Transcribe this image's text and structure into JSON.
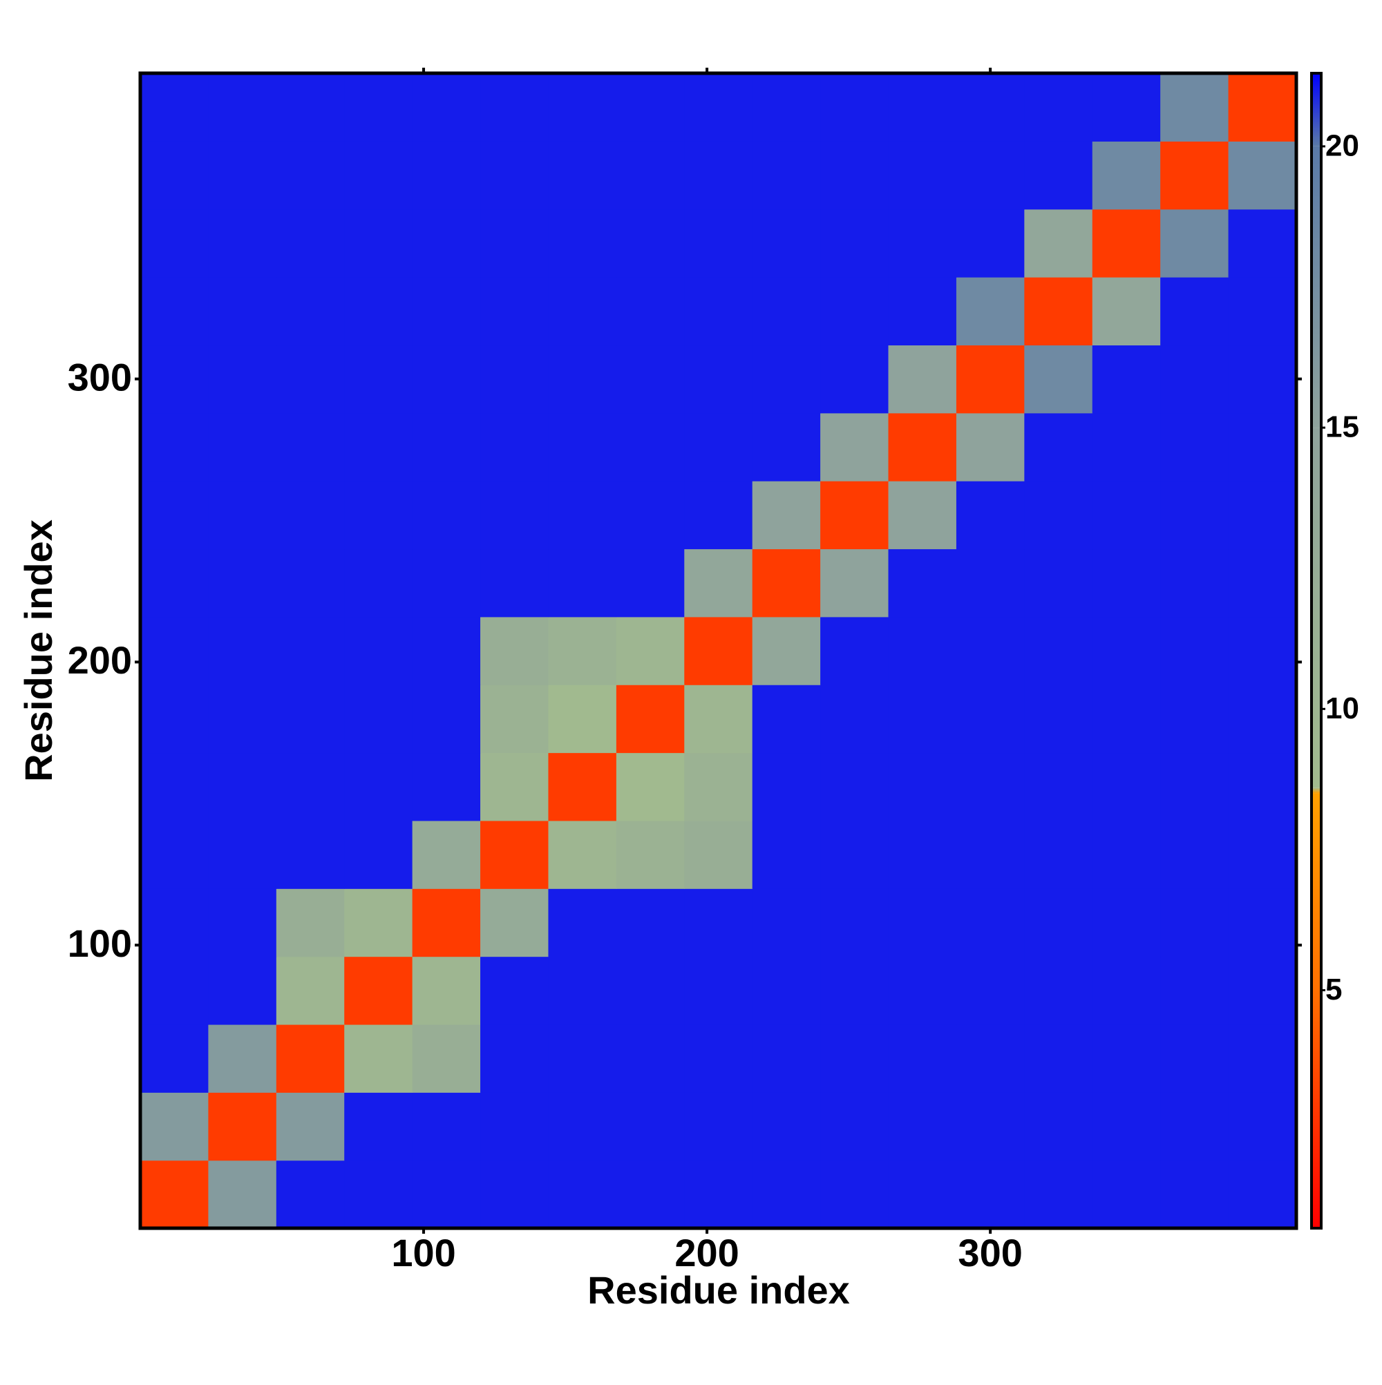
{
  "chart_data": {
    "type": "heatmap",
    "xlabel": "Residue index",
    "ylabel": "Residue index",
    "xlim": [
      0,
      408
    ],
    "ylim": [
      0,
      408
    ],
    "xticks": [
      100,
      200,
      300
    ],
    "yticks": [
      100,
      200,
      300
    ],
    "xbins": [
      0,
      24,
      48,
      72,
      96,
      120,
      144,
      168,
      192,
      216,
      240,
      264,
      288,
      312,
      336,
      360,
      384,
      408
    ],
    "ybins": [
      0,
      24,
      48,
      72,
      96,
      120,
      144,
      168,
      192,
      216,
      240,
      264,
      288,
      312,
      336,
      360,
      384,
      408
    ],
    "z": [
      [
        3,
        16,
        21,
        21,
        21,
        21,
        21,
        21,
        21,
        21,
        21,
        21,
        21,
        21,
        21,
        21,
        21
      ],
      [
        16,
        3,
        16,
        21,
        21,
        21,
        21,
        21,
        21,
        21,
        21,
        21,
        21,
        21,
        21,
        21,
        21
      ],
      [
        21,
        16,
        3,
        10,
        12,
        21,
        21,
        21,
        21,
        21,
        21,
        21,
        21,
        21,
        21,
        21,
        21
      ],
      [
        21,
        21,
        10,
        3,
        10,
        21,
        21,
        21,
        21,
        21,
        21,
        21,
        21,
        21,
        21,
        21,
        21
      ],
      [
        21,
        21,
        12,
        10,
        3,
        13,
        21,
        21,
        21,
        21,
        21,
        21,
        21,
        21,
        21,
        21,
        21
      ],
      [
        21,
        21,
        21,
        21,
        13,
        3,
        10,
        11,
        12,
        21,
        21,
        21,
        21,
        21,
        21,
        21,
        21
      ],
      [
        21,
        21,
        21,
        21,
        21,
        10,
        3,
        9,
        11,
        21,
        21,
        21,
        21,
        21,
        21,
        21,
        21
      ],
      [
        21,
        21,
        21,
        21,
        21,
        11,
        9,
        3,
        10,
        21,
        21,
        21,
        21,
        21,
        21,
        21,
        21
      ],
      [
        21,
        21,
        21,
        21,
        21,
        12,
        11,
        10,
        3,
        14,
        21,
        21,
        21,
        21,
        21,
        21,
        21
      ],
      [
        21,
        21,
        21,
        21,
        21,
        21,
        21,
        21,
        14,
        3,
        15,
        21,
        21,
        21,
        21,
        21,
        21
      ],
      [
        21,
        21,
        21,
        21,
        21,
        21,
        21,
        21,
        21,
        15,
        3,
        15,
        21,
        21,
        21,
        21,
        21
      ],
      [
        21,
        21,
        21,
        21,
        21,
        21,
        21,
        21,
        21,
        21,
        15,
        3,
        15,
        21,
        21,
        21,
        21
      ],
      [
        21,
        21,
        21,
        21,
        21,
        21,
        21,
        21,
        21,
        21,
        21,
        15,
        3,
        18,
        21,
        21,
        21
      ],
      [
        21,
        21,
        21,
        21,
        21,
        21,
        21,
        21,
        21,
        21,
        21,
        21,
        18,
        3,
        14,
        21,
        21
      ],
      [
        21,
        21,
        21,
        21,
        21,
        21,
        21,
        21,
        21,
        21,
        21,
        21,
        21,
        14,
        3,
        18,
        21
      ],
      [
        21,
        21,
        21,
        21,
        21,
        21,
        21,
        21,
        21,
        21,
        21,
        21,
        21,
        21,
        18,
        3,
        18
      ],
      [
        21,
        21,
        21,
        21,
        21,
        21,
        21,
        21,
        21,
        21,
        21,
        21,
        21,
        21,
        21,
        18,
        3
      ]
    ],
    "zlim": [
      0.77,
      21.3
    ],
    "zticks": [
      5,
      10,
      15,
      20
    ],
    "colorscale": [
      [
        0.77,
        "#ff0000"
      ],
      [
        5,
        "#ff7000"
      ],
      [
        8.5,
        "#ffa000"
      ],
      [
        8.6,
        "#a2bb8e"
      ],
      [
        15,
        "#8fa39c"
      ],
      [
        20,
        "#5a7aa8"
      ],
      [
        21.3,
        "#0000ff"
      ]
    ]
  }
}
